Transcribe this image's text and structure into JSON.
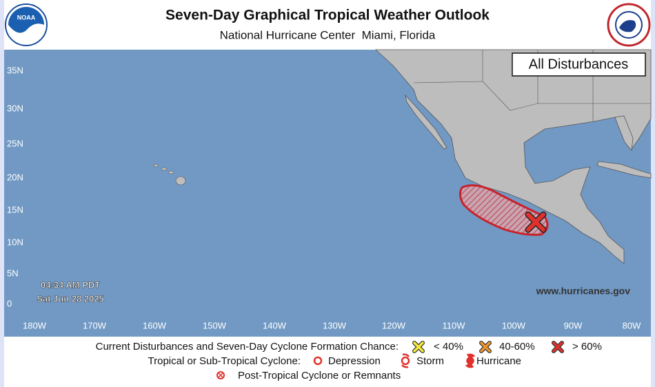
{
  "header": {
    "title": "Seven-Day Graphical Tropical Weather Outlook",
    "subtitle": "National Hurricane Center  Miami, Florida"
  },
  "map": {
    "panel_label": "All Disturbances",
    "time": "04:34 AM PDT",
    "date": "Sat Jun 28 2025",
    "website": "www.hurricanes.gov",
    "latitude_labels": [
      "35N",
      "30N",
      "25N",
      "20N",
      "15N",
      "10N",
      "5N",
      "0"
    ],
    "longitude_labels": [
      "180W",
      "170W",
      "160W",
      "150W",
      "140W",
      "130W",
      "120W",
      "110W",
      "100W",
      "90W",
      "80W"
    ]
  },
  "legend": {
    "formation": {
      "label": "Current Disturbances and Seven-Day Cyclone Formation Chance:",
      "low": "< 40%",
      "medium": "40-60%",
      "high": "> 60%"
    },
    "cyclone": {
      "label": "Tropical or Sub-Tropical Cyclone:",
      "depression": "Depression",
      "storm": "Storm",
      "hurricane": "Hurricane"
    },
    "post_tropical": "Post-Tropical Cyclone or Remnants"
  }
}
